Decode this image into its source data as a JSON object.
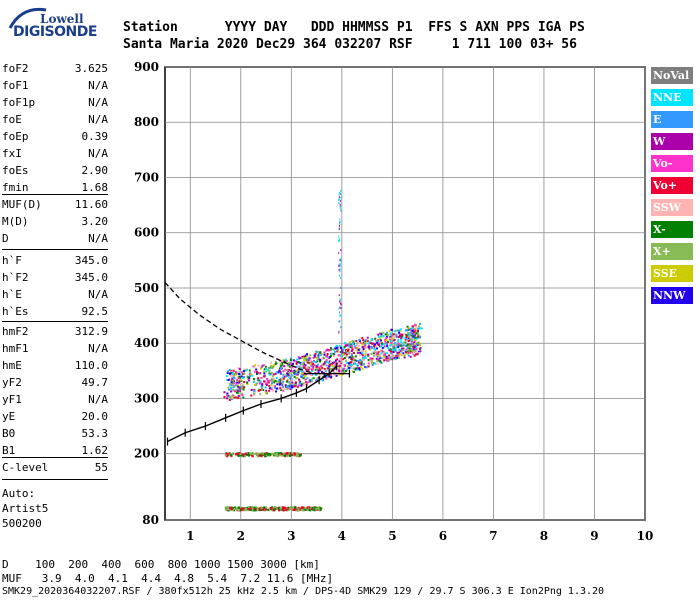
{
  "logo": {
    "line1": "Lowell",
    "line2": "DIGISONDE"
  },
  "header": {
    "row1": "Station      YYYY DAY   DDD HHMMSS P1  FFS S AXN PPS IGA PS",
    "row2": "Santa Maria 2020 Dec29 364 032207 RSF     1 711 100 03+ 56"
  },
  "params": [
    {
      "name": "foF2",
      "value": "3.625"
    },
    {
      "name": "foF1",
      "value": "N/A"
    },
    {
      "name": "foF1p",
      "value": "N/A"
    },
    {
      "name": "foE",
      "value": "N/A"
    },
    {
      "name": "foEp",
      "value": "0.39"
    },
    {
      "name": "fxI",
      "value": "N/A"
    },
    {
      "name": "foEs",
      "value": "2.90"
    },
    {
      "name": "fmin",
      "value": "1.68"
    },
    {
      "name": "MUF(D)",
      "value": "11.60"
    },
    {
      "name": "M(D)",
      "value": "3.20"
    },
    {
      "name": "D",
      "value": "N/A"
    },
    {
      "name": "h`F",
      "value": "345.0"
    },
    {
      "name": "h`F2",
      "value": "345.0"
    },
    {
      "name": "h`E",
      "value": "N/A"
    },
    {
      "name": "h`Es",
      "value": "92.5"
    },
    {
      "name": "hmF2",
      "value": "312.9"
    },
    {
      "name": "hmF1",
      "value": "N/A"
    },
    {
      "name": "hmE",
      "value": "110.0"
    },
    {
      "name": "yF2",
      "value": "49.7"
    },
    {
      "name": "yF1",
      "value": "N/A"
    },
    {
      "name": "yE",
      "value": "20.0"
    },
    {
      "name": "B0",
      "value": "53.3"
    },
    {
      "name": "B1",
      "value": "1.62"
    },
    {
      "name": "C-level",
      "value": "55"
    }
  ],
  "autoscaling": {
    "line1": "Auto:",
    "line2": "Artist5",
    "line3": "500200"
  },
  "legend": [
    {
      "label": "NoVal",
      "color": "#7f7f7f"
    },
    {
      "label": "NNE",
      "color": "#00e5ff"
    },
    {
      "label": "E",
      "color": "#3399ff"
    },
    {
      "label": "W",
      "color": "#aa00aa"
    },
    {
      "label": "Vo-",
      "color": "#ff33cc"
    },
    {
      "label": "Vo+",
      "color": "#ee0033"
    },
    {
      "label": "SSW",
      "color": "#ffb3b3"
    },
    {
      "label": "X-",
      "color": "#008000"
    },
    {
      "label": "X+",
      "color": "#88bb55"
    },
    {
      "label": "SSE",
      "color": "#cccc00"
    },
    {
      "label": "NNW",
      "color": "#2200ee"
    }
  ],
  "footer": {
    "row1": "D    100  200  400  600  800 1000 1500 3000 [km]",
    "row2": "MUF   3.9  4.0  4.1  4.4  4.8  5.4  7.2 11.6 [MHz]",
    "row3": "SMK29_2020364032207.RSF / 380fx512h 25 kHz 2.5 km / DPS-4D SMK29 129 / 29.7 S 306.3 E Ion2Png 1.3.20"
  },
  "chart_data": {
    "type": "scatter",
    "xlabel": "",
    "ylabel": "",
    "xlim": [
      0.5,
      10
    ],
    "ylim": [
      80,
      900
    ],
    "x_ticks": [
      1,
      2,
      3,
      4,
      5,
      6,
      7,
      8,
      9,
      10
    ],
    "y_ticks": [
      80,
      200,
      300,
      400,
      500,
      600,
      700,
      800,
      900
    ],
    "grid": true,
    "legend_position": "right",
    "series": [
      {
        "name": "trace",
        "values": [
          [
            0.55,
            222
          ],
          [
            0.9,
            238
          ],
          [
            1.3,
            250
          ],
          [
            1.7,
            265
          ],
          [
            2.05,
            278
          ],
          [
            2.4,
            290
          ],
          [
            2.8,
            300
          ],
          [
            3.1,
            310
          ],
          [
            3.3,
            318
          ],
          [
            3.55,
            333
          ],
          [
            3.75,
            345
          ],
          [
            3.9,
            358
          ]
        ]
      },
      {
        "name": "profile",
        "values": [
          [
            0.5,
            510
          ],
          [
            0.8,
            480
          ],
          [
            1.2,
            450
          ],
          [
            1.6,
            425
          ],
          [
            2.0,
            405
          ],
          [
            2.4,
            385
          ],
          [
            2.8,
            368
          ],
          [
            3.2,
            352
          ],
          [
            3.45,
            345
          ]
        ]
      },
      {
        "name": "echo",
        "values": [
          [
            1.7,
            325
          ],
          [
            2.0,
            330
          ],
          [
            2.5,
            338
          ],
          [
            2.9,
            345
          ],
          [
            3.2,
            352
          ],
          [
            3.5,
            360
          ],
          [
            3.8,
            368
          ],
          [
            4.1,
            375
          ],
          [
            4.4,
            383
          ],
          [
            4.7,
            392
          ],
          [
            5.0,
            400
          ],
          [
            5.3,
            405
          ],
          [
            5.5,
            410
          ]
        ]
      },
      {
        "name": "es_layer",
        "values": [
          [
            1.7,
            200
          ],
          [
            2.0,
            200
          ],
          [
            2.4,
            200
          ],
          [
            2.8,
            200
          ],
          [
            3.1,
            200
          ]
        ]
      },
      {
        "name": "e_layer",
        "values": [
          [
            1.7,
            102
          ],
          [
            2.0,
            102
          ],
          [
            2.4,
            102
          ],
          [
            2.8,
            102
          ],
          [
            3.2,
            102
          ],
          [
            3.5,
            102
          ]
        ]
      }
    ]
  }
}
